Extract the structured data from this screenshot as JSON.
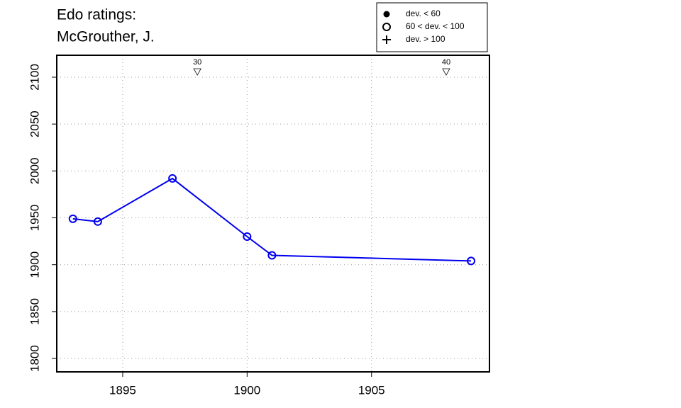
{
  "chart_data": {
    "type": "line",
    "title": [
      "Edo ratings:",
      "McGrouther, J."
    ],
    "x": [
      1893,
      1894,
      1897,
      1900,
      1901,
      1909
    ],
    "series": [
      {
        "color": "#0000ee",
        "marker": "open-circle",
        "values": [
          1949,
          1946,
          1992,
          1930,
          1910,
          1904
        ]
      }
    ],
    "xlim": [
      1892.35,
      1909.74
    ],
    "ylim": [
      1785.7,
      2123.4
    ],
    "xticks": [
      1895,
      1900,
      1905
    ],
    "yticks": [
      1800,
      1850,
      1900,
      1950,
      2000,
      2050,
      2100
    ],
    "grid": true,
    "markers": [
      {
        "x": 1898,
        "y": 2106,
        "label": "30"
      },
      {
        "x": 1908,
        "y": 2106,
        "label": "40"
      }
    ],
    "legend": [
      {
        "label": "dev. < 60",
        "symbol": "filled-circle"
      },
      {
        "label": "60 < dev. < 100",
        "symbol": "open-circle"
      },
      {
        "label": "dev. > 100",
        "symbol": "plus"
      }
    ],
    "legend_position": "top-right"
  }
}
